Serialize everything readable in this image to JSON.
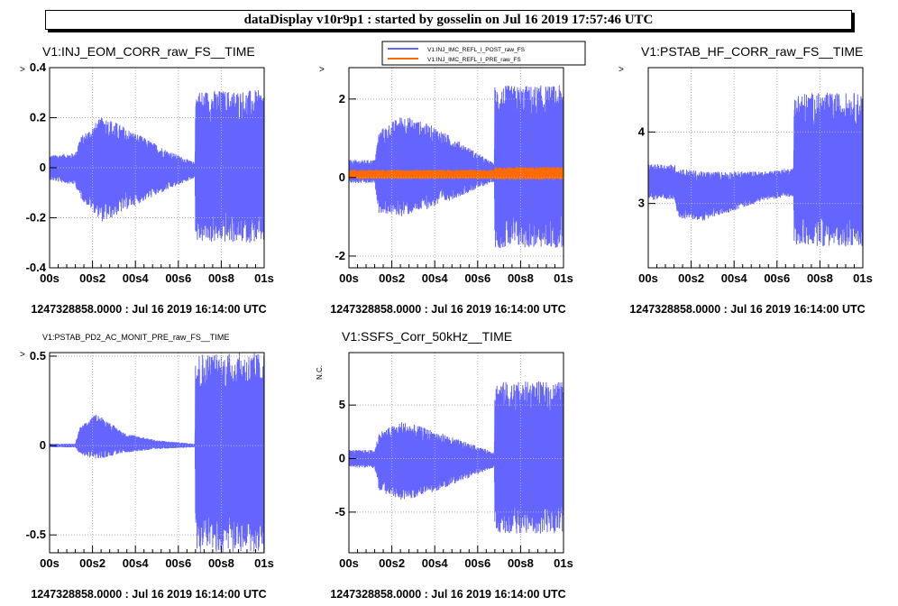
{
  "window": {
    "title": "dataDisplay v10r9p1 : started by gosselin on Jul 16 2019 17:57:46 UTC"
  },
  "colors": {
    "blue": "#6464ff",
    "orange": "#ff6a00",
    "grid": "#b0b0b0"
  },
  "chart_data": [
    {
      "type": "line",
      "title": "V1:INJ_EOM_CORR_raw_FS__TIME",
      "ylabel": "",
      "xlabel": "",
      "xlim": [
        0,
        1
      ],
      "ylim": [
        -0.4,
        0.4
      ],
      "x_ticks": [
        "00s",
        "00s2",
        "00s4",
        "00s6",
        "00s8",
        "01s"
      ],
      "y_ticks": [
        {
          "value": 0.4,
          "label": "0.4"
        },
        {
          "value": 0.2,
          "label": "0.2"
        },
        {
          "value": 0,
          "label": "0"
        },
        {
          "value": -0.2,
          "label": "-0.2"
        },
        {
          "value": -0.4,
          "label": "-0.4"
        }
      ],
      "y_arrow": true,
      "grid": true,
      "footer": "1247328858.0000 : Jul 16 2019 16:14:00 UTC",
      "series": [
        {
          "name": "",
          "color": "#6464ff",
          "envelope": [
            {
              "x": 0.0,
              "upper": 0.05,
              "lower": -0.05
            },
            {
              "x": 0.12,
              "upper": 0.06,
              "lower": -0.07
            },
            {
              "x": 0.14,
              "upper": 0.12,
              "lower": -0.12
            },
            {
              "x": 0.25,
              "upper": 0.21,
              "lower": -0.22
            },
            {
              "x": 0.4,
              "upper": 0.14,
              "lower": -0.15
            },
            {
              "x": 0.55,
              "upper": 0.07,
              "lower": -0.09
            },
            {
              "x": 0.678,
              "upper": 0.02,
              "lower": -0.04
            },
            {
              "x": 0.68,
              "upper": 0.31,
              "lower": -0.3
            },
            {
              "x": 1.0,
              "upper": 0.31,
              "lower": -0.3
            }
          ]
        }
      ]
    },
    {
      "type": "line",
      "title": "",
      "ylabel": "",
      "xlabel": "",
      "xlim": [
        0,
        1
      ],
      "ylim": [
        -2.3,
        2.8
      ],
      "x_ticks": [
        "00s",
        "00s2",
        "00s4",
        "00s6",
        "00s8",
        "01s"
      ],
      "y_ticks": [
        {
          "value": 2,
          "label": "2"
        },
        {
          "value": 0,
          "label": "0"
        },
        {
          "value": -2,
          "label": "-2"
        }
      ],
      "y_arrow": true,
      "grid": true,
      "legend": "top",
      "footer": "1247328858.0000 : Jul 16 2019 16:14:00 UTC",
      "series": [
        {
          "name": "V1:INJ_IMC_REFL_I_POST_raw_FS",
          "color": "#6464ff",
          "envelope": [
            {
              "x": 0.0,
              "upper": 0.45,
              "lower": -0.15
            },
            {
              "x": 0.12,
              "upper": 0.45,
              "lower": -0.15
            },
            {
              "x": 0.14,
              "upper": 1.2,
              "lower": -0.9
            },
            {
              "x": 0.25,
              "upper": 1.6,
              "lower": -1.0
            },
            {
              "x": 0.4,
              "upper": 1.3,
              "lower": -0.75
            },
            {
              "x": 0.55,
              "upper": 0.8,
              "lower": -0.4
            },
            {
              "x": 0.678,
              "upper": 0.35,
              "lower": -0.1
            },
            {
              "x": 0.68,
              "upper": 2.35,
              "lower": -1.8
            },
            {
              "x": 1.0,
              "upper": 2.35,
              "lower": -1.8
            }
          ]
        },
        {
          "name": "V1:INJ_IMC_REFL_I_PRE_raw_FS",
          "color": "#ff6a00",
          "envelope": [
            {
              "x": 0.0,
              "upper": 0.2,
              "lower": -0.04
            },
            {
              "x": 0.678,
              "upper": 0.2,
              "lower": -0.04
            },
            {
              "x": 0.68,
              "upper": 0.27,
              "lower": -0.06
            },
            {
              "x": 1.0,
              "upper": 0.27,
              "lower": -0.06
            }
          ]
        }
      ]
    },
    {
      "type": "line",
      "title": "V1:PSTAB_HF_CORR_raw_FS__TIME",
      "ylabel": "",
      "xlabel": "",
      "xlim": [
        0,
        1
      ],
      "ylim": [
        2.1,
        4.9
      ],
      "x_ticks": [
        "00s",
        "00s2",
        "00s4",
        "00s6",
        "00s8",
        "01s"
      ],
      "y_ticks": [
        {
          "value": 4,
          "label": "4"
        },
        {
          "value": 3,
          "label": "3"
        }
      ],
      "y_arrow": true,
      "grid": true,
      "footer": "1247328858.0000 : Jul 16 2019 16:14:00 UTC",
      "series": [
        {
          "name": "",
          "color": "#6464ff",
          "envelope": [
            {
              "x": 0.0,
              "upper": 3.55,
              "lower": 3.05
            },
            {
              "x": 0.12,
              "upper": 3.55,
              "lower": 3.05
            },
            {
              "x": 0.14,
              "upper": 3.5,
              "lower": 2.8
            },
            {
              "x": 0.25,
              "upper": 3.45,
              "lower": 2.75
            },
            {
              "x": 0.4,
              "upper": 3.45,
              "lower": 2.9
            },
            {
              "x": 0.55,
              "upper": 3.45,
              "lower": 3.05
            },
            {
              "x": 0.678,
              "upper": 3.5,
              "lower": 3.1
            },
            {
              "x": 0.68,
              "upper": 4.55,
              "lower": 2.4
            },
            {
              "x": 1.0,
              "upper": 4.55,
              "lower": 2.4
            }
          ]
        }
      ]
    },
    {
      "type": "line",
      "title": "V1:PSTAB_PD2_AC_MONIT_PRE_raw_FS__TIME",
      "ylabel": "",
      "xlabel": "",
      "xlim": [
        0,
        1
      ],
      "ylim": [
        -0.6,
        0.52
      ],
      "x_ticks": [
        "00s",
        "00s2",
        "00s4",
        "00s6",
        "00s8",
        "01s"
      ],
      "y_ticks": [
        {
          "value": 0.5,
          "label": "0.5"
        },
        {
          "value": 0,
          "label": "0"
        },
        {
          "value": -0.5,
          "label": "-0.5"
        }
      ],
      "y_arrow": true,
      "grid": true,
      "footer": "1247328858.0000 : Jul 16 2019 16:14:00 UTC",
      "series": [
        {
          "name": "",
          "color": "#6464ff",
          "envelope": [
            {
              "x": 0.0,
              "upper": 0.01,
              "lower": -0.01
            },
            {
              "x": 0.12,
              "upper": 0.01,
              "lower": -0.01
            },
            {
              "x": 0.14,
              "upper": 0.1,
              "lower": -0.05
            },
            {
              "x": 0.22,
              "upper": 0.18,
              "lower": -0.08
            },
            {
              "x": 0.35,
              "upper": 0.07,
              "lower": -0.04
            },
            {
              "x": 0.5,
              "upper": 0.03,
              "lower": -0.02
            },
            {
              "x": 0.678,
              "upper": 0.01,
              "lower": -0.01
            },
            {
              "x": 0.68,
              "upper": 0.52,
              "lower": -0.6
            },
            {
              "x": 1.0,
              "upper": 0.52,
              "lower": -0.6
            }
          ]
        }
      ]
    },
    {
      "type": "line",
      "title": "V1:SSFS_Corr_50kHz__TIME",
      "ylabel": "N.C.",
      "xlabel": "",
      "xlim": [
        0,
        1
      ],
      "ylim": [
        -8.8,
        9.9
      ],
      "x_ticks": [
        "00s",
        "00s2",
        "00s4",
        "00s6",
        "00s8",
        "01s"
      ],
      "y_ticks": [
        {
          "value": 5,
          "label": "5"
        },
        {
          "value": 0,
          "label": "0"
        },
        {
          "value": -5,
          "label": "-5"
        }
      ],
      "y_arrow": false,
      "grid": true,
      "footer": "1247328858.0000 : Jul 16 2019 16:14:00 UTC",
      "series": [
        {
          "name": "",
          "color": "#6464ff",
          "envelope": [
            {
              "x": 0.0,
              "upper": 0.8,
              "lower": -0.8
            },
            {
              "x": 0.12,
              "upper": 0.8,
              "lower": -0.9
            },
            {
              "x": 0.14,
              "upper": 2.5,
              "lower": -3.0
            },
            {
              "x": 0.25,
              "upper": 3.5,
              "lower": -4.0
            },
            {
              "x": 0.4,
              "upper": 2.6,
              "lower": -3.1
            },
            {
              "x": 0.55,
              "upper": 1.5,
              "lower": -1.9
            },
            {
              "x": 0.678,
              "upper": 0.6,
              "lower": -0.8
            },
            {
              "x": 0.68,
              "upper": 7.2,
              "lower": -7.0
            },
            {
              "x": 1.0,
              "upper": 7.2,
              "lower": -7.0
            }
          ]
        }
      ]
    }
  ]
}
